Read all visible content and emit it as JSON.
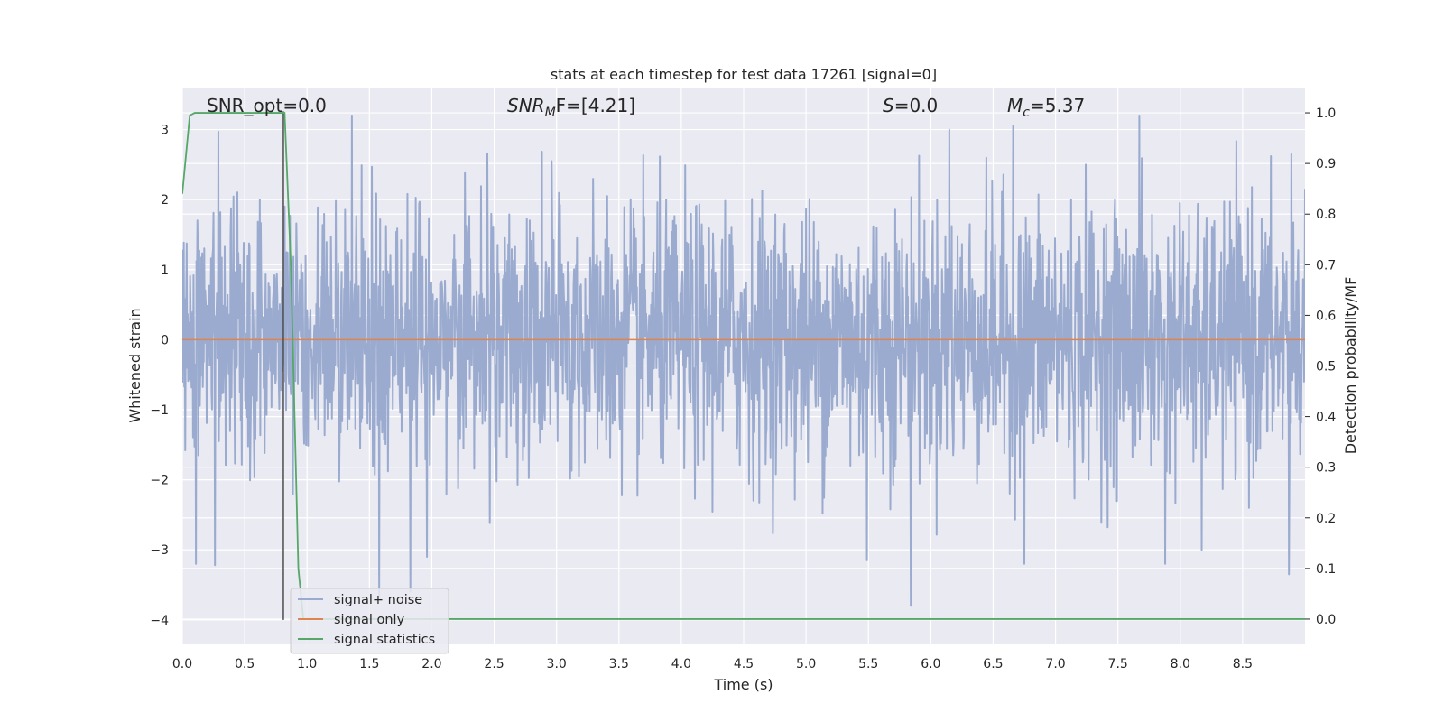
{
  "chart_data": {
    "type": "line",
    "title": "stats at each timestep for test data 17261 [signal=0]",
    "xlabel": "Time (s)",
    "ylabel": "Whitened strain",
    "y2label": "Detection probability/MF",
    "xlim": [
      0.0,
      9.0
    ],
    "ylim": [
      -4.35,
      3.6
    ],
    "y2lim": [
      -0.05,
      1.05
    ],
    "x_ticks": [
      0.0,
      0.5,
      1.0,
      1.5,
      2.0,
      2.5,
      3.0,
      3.5,
      4.0,
      4.5,
      5.0,
      5.5,
      6.0,
      6.5,
      7.0,
      7.5,
      8.0,
      8.5
    ],
    "x_tick_labels": [
      "0.0",
      "0.5",
      "1.0",
      "1.5",
      "2.0",
      "2.5",
      "3.0",
      "3.5",
      "4.0",
      "4.5",
      "5.0",
      "5.5",
      "6.0",
      "6.5",
      "7.0",
      "7.5",
      "8.0",
      "8.5"
    ],
    "y_ticks": [
      3,
      2,
      1,
      0,
      -1,
      -2,
      -3,
      -4
    ],
    "y_tick_labels": [
      "3",
      "2",
      "1",
      "0",
      "−1",
      "−2",
      "−3",
      "−4"
    ],
    "y2_ticks": [
      1.0,
      0.9,
      0.8,
      0.7,
      0.6,
      0.5,
      0.4,
      0.3,
      0.2,
      0.1,
      0.0
    ],
    "y2_tick_labels": [
      "1.0",
      "0.9",
      "0.8",
      "0.7",
      "0.6",
      "0.5",
      "0.4",
      "0.3",
      "0.2",
      "0.1",
      "0.0"
    ],
    "grid": true,
    "legend_position": "bottom-left",
    "annotations": {
      "snr_opt": "SNR_opt=0.0",
      "snr_mf_sym": "SNR",
      "snr_mf_sub": "M",
      "snr_mf_tail": "F=[4.21]",
      "s_sym": "S",
      "s_tail": "=0.0",
      "mc_sym": "M",
      "mc_sub": "c",
      "mc_tail": "=5.37"
    },
    "series": [
      {
        "name": "signal+ noise",
        "color": "#9aabcf",
        "axis": "left",
        "style": "dense noise, approx. Gaussian, range about -3.8 to 3.25",
        "points_per_second": 256,
        "spikes": [
          {
            "x": 0.11,
            "y": -3.2
          },
          {
            "x": 0.26,
            "y": -3.22
          },
          {
            "x": 0.29,
            "y": 2.97
          },
          {
            "x": 1.36,
            "y": 3.2
          },
          {
            "x": 1.52,
            "y": 2.47
          },
          {
            "x": 1.58,
            "y": -3.65
          },
          {
            "x": 1.83,
            "y": -3.6
          },
          {
            "x": 1.96,
            "y": -3.1
          },
          {
            "x": 2.96,
            "y": 2.55
          },
          {
            "x": 5.49,
            "y": -3.15
          },
          {
            "x": 5.84,
            "y": -3.8
          },
          {
            "x": 6.15,
            "y": 3.0
          },
          {
            "x": 6.66,
            "y": 3.05
          },
          {
            "x": 6.75,
            "y": -3.2
          },
          {
            "x": 7.67,
            "y": 3.2
          },
          {
            "x": 7.88,
            "y": -3.2
          },
          {
            "x": 8.17,
            "y": -3.0
          },
          {
            "x": 8.87,
            "y": -3.35
          },
          {
            "x": 8.89,
            "y": 2.65
          }
        ]
      },
      {
        "name": "signal only",
        "color": "#dd8452",
        "axis": "left",
        "x": [
          0.0,
          9.0
        ],
        "y": [
          0.0,
          0.0
        ]
      },
      {
        "name": "signal statistics",
        "color": "#55a868",
        "axis": "right",
        "x": [
          0.0,
          0.06,
          0.1,
          0.3,
          0.5,
          0.7,
          0.8,
          0.82,
          0.87,
          0.93,
          0.97,
          1.2,
          2.0,
          4.0,
          6.0,
          8.0,
          9.0
        ],
        "y": [
          0.84,
          0.995,
          1.0,
          1.0,
          1.0,
          1.0,
          1.0,
          1.0,
          0.7,
          0.1,
          0.0,
          0.0,
          0.0,
          0.0,
          0.0,
          0.0,
          0.0
        ]
      }
    ],
    "vertical_marker": {
      "x": 0.81,
      "y_from": -4.0,
      "y_to": 3.26,
      "color": "#4d4d4d"
    }
  }
}
